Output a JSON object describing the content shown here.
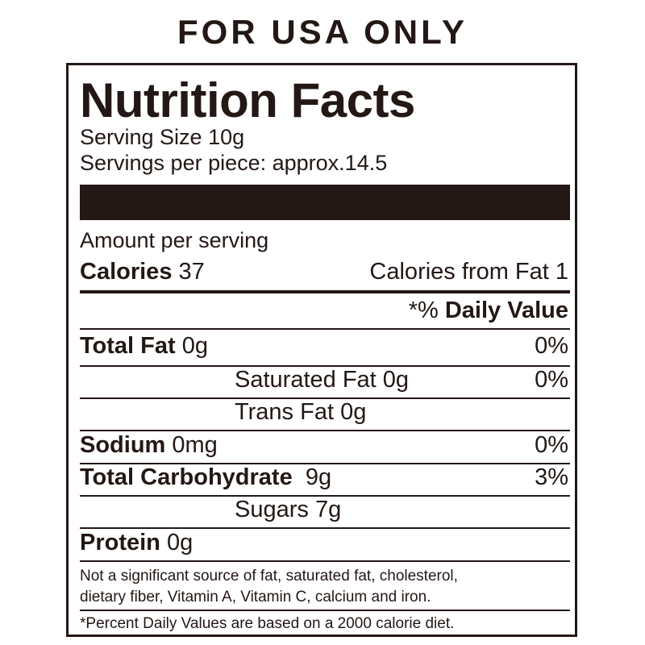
{
  "header": "FOR USA ONLY",
  "label": {
    "title": "Nutrition Facts",
    "serving_size": "Serving Size 10g",
    "servings_per": "Servings per piece: approx.14.5",
    "amount_per_serving": "Amount per serving",
    "calories_label": "Calories",
    "calories_value": " 37",
    "calories_from_fat": "Calories from Fat 1",
    "daily_value_prefix": "*% ",
    "daily_value_label": "Daily Value",
    "rows": [
      {
        "name": "Total Fat",
        "amount": " 0g",
        "dv": "0%"
      },
      {
        "name": "Saturated Fat 0g",
        "dv": "0%"
      },
      {
        "name": "Trans Fat 0g"
      },
      {
        "name": "Sodium",
        "amount": " 0mg",
        "dv": "0%"
      },
      {
        "name": "Total Carbohydrate",
        "amount": "  9g",
        "dv": "3%"
      },
      {
        "name": "Sugars 7g"
      },
      {
        "name": "Protein",
        "amount": " 0g"
      }
    ],
    "note_line1": "Not a significant source of fat, saturated fat, cholesterol,",
    "note_line2": "dietary fiber, Vitamin A, Vitamin C, calcium and iron.",
    "footnote": "*Percent Daily Values are based on a 2000 calorie diet."
  },
  "colors": {
    "ink": "#231815",
    "background": "#ffffff"
  }
}
